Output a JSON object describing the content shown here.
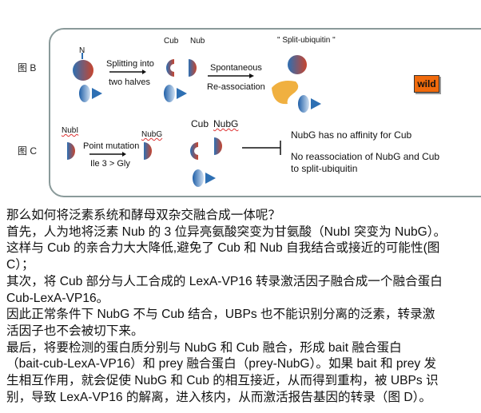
{
  "figure": {
    "label_b": "图 B",
    "label_c": "图 C",
    "b": {
      "n_label": "N",
      "split_top": "Splitting into",
      "split_bottom": "two halves",
      "cub": "Cub",
      "nub": "Nub",
      "spont_top": "Spontaneous",
      "spont_bottom": "Re-association",
      "split_ubiquitin": "\" Split-ubiquitin \"",
      "wild": "wild"
    },
    "c": {
      "nubi": "NubI",
      "mut_top": "Point mutation",
      "mut_bottom": "Ile 3 > Gly",
      "nubg_small": "NubG",
      "cub": "Cub",
      "nubg": "NubG",
      "note1": "NubG has no affinity for Cub",
      "note2a": "No reassociation of NubG and Cub",
      "note2b": "to split-ubiquitin"
    },
    "colors": {
      "blue": "#2d6fb3",
      "red": "#c8452e",
      "orange": "#f06a0c",
      "yellow": "#f0b040"
    }
  },
  "paragraph_lines": [
    "那么如何将泛素系统和酵母双杂交融合成一体呢？",
    "首先，人为地将泛素 Nub 的 3 位异亮氨酸突变为甘氨酸（NubI 突变为 NubG）。",
    "这样与 Cub 的亲合力大大降低,避免了 Cub 和 Nub 自我结合或接近的可能性(图",
    "C）；",
    "其次，将 Cub 部分与人工合成的 LexA-VP16 转录激活因子融合成一个融合蛋白",
    "Cub-LexA-VP16。",
    "因此正常条件下 NubG 不与 Cub 结合，UBPs 也不能识别分离的泛素，转录激",
    "活因子也不会被切下来。",
    "最后，将要检测的蛋白质分别与 NubG 和 Cub 融合，形成 bait 融合蛋白",
    "（bait-cub-LexA-VP16）和 prey 融合蛋白（prey-NubG）。如果 bait 和 prey 发",
    "生相互作用，就会促使 NubG 和 Cub 的相互接近，从而得到重构，被 UBPs 识",
    "别，导致 LexA-VP16 的解离，进入核内，从而激活报告基因的转录（图 D）。"
  ]
}
